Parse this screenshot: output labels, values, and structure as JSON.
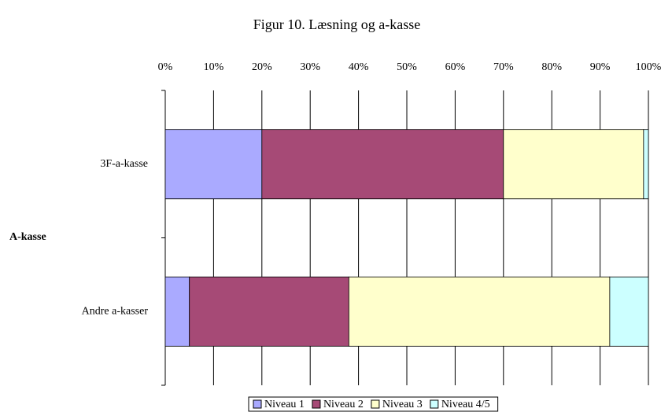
{
  "chart_data": {
    "type": "stacked-barh",
    "title": "Figur 10. Læsning og a-kasse",
    "ylabel": "A-kasse",
    "categories": [
      "3F-a-kasse",
      "Andre a-kasser"
    ],
    "series": [
      {
        "name": "Niveau 1",
        "color": "#aaaaff",
        "values": [
          20,
          5
        ]
      },
      {
        "name": "Niveau 2",
        "color": "#a64a76",
        "values": [
          50,
          33
        ]
      },
      {
        "name": "Niveau 3",
        "color": "#ffffcc",
        "values": [
          29,
          54
        ]
      },
      {
        "name": "Niveau 4/5",
        "color": "#ccffff",
        "values": [
          1,
          8
        ]
      }
    ],
    "xlim": [
      0,
      100
    ],
    "xticks": [
      {
        "value": 0,
        "label": "0%"
      },
      {
        "value": 10,
        "label": "10%"
      },
      {
        "value": 20,
        "label": "20%"
      },
      {
        "value": 30,
        "label": "30%"
      },
      {
        "value": 40,
        "label": "40%"
      },
      {
        "value": 50,
        "label": "50%"
      },
      {
        "value": 60,
        "label": "60%"
      },
      {
        "value": 70,
        "label": "70%"
      },
      {
        "value": 80,
        "label": "80%"
      },
      {
        "value": 90,
        "label": "90%"
      },
      {
        "value": 100,
        "label": "100%"
      }
    ],
    "grid": true,
    "legend": "bottom"
  }
}
